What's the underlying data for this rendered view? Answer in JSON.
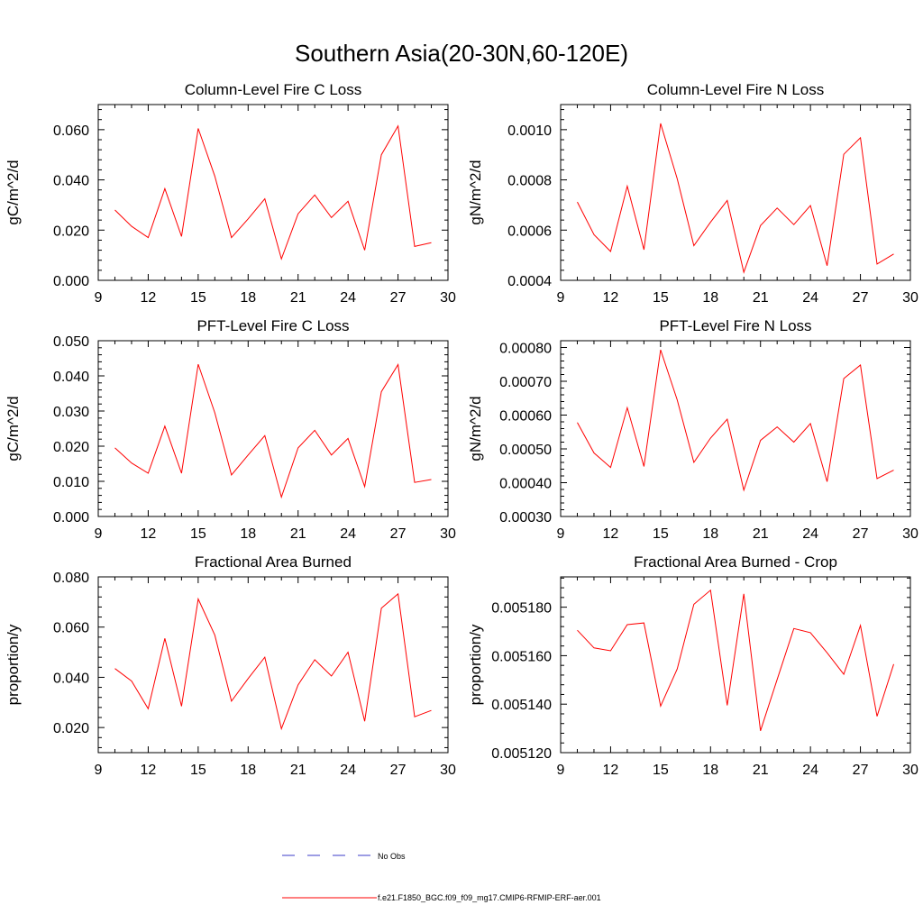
{
  "figure_title": "Southern Asia(20-30N,60-120E)",
  "colors": {
    "model": "#ff0000",
    "obs": "#3b3bc9",
    "axis": "#000000"
  },
  "legend": {
    "obs_label": "No Obs",
    "model_label": "f.e21.F1850_BGC.f09_f09_mg17.CMIP6-RFMIP-ERF-aer.001"
  },
  "chart_data": [
    {
      "type": "line",
      "title": "Column-Level Fire C Loss",
      "ylabel": "gC/m^2/d",
      "xlim": [
        9,
        30
      ],
      "xticks": [
        9,
        12,
        15,
        18,
        21,
        24,
        27,
        30
      ],
      "ylim": [
        0.0,
        0.07
      ],
      "yticks": [
        "0.000",
        "0.020",
        "0.040",
        "0.060"
      ],
      "x": [
        10,
        11,
        12,
        13,
        14,
        15,
        16,
        17,
        18,
        19,
        20,
        21,
        22,
        23,
        24,
        25,
        26,
        27,
        28,
        29
      ],
      "series": [
        {
          "values": [
            0.028,
            0.0215,
            0.017,
            0.0365,
            0.0175,
            0.0605,
            0.0415,
            0.017,
            0.0245,
            0.0325,
            0.0085,
            0.0265,
            0.034,
            0.025,
            0.0315,
            0.012,
            0.05,
            0.0615,
            0.0135,
            0.015
          ]
        }
      ]
    },
    {
      "type": "line",
      "title": "Column-Level Fire N Loss",
      "ylabel": "gN/m^2/d",
      "xlim": [
        9,
        30
      ],
      "xticks": [
        9,
        12,
        15,
        18,
        21,
        24,
        27,
        30
      ],
      "ylim": [
        0.0004,
        0.0011
      ],
      "yticks": [
        "0.0004",
        "0.0006",
        "0.0008",
        "0.0010"
      ],
      "x": [
        10,
        11,
        12,
        13,
        14,
        15,
        16,
        17,
        18,
        19,
        20,
        21,
        22,
        23,
        24,
        25,
        26,
        27,
        28,
        29
      ],
      "series": [
        {
          "values": [
            0.000712,
            0.000582,
            0.000515,
            0.000775,
            0.000522,
            0.001025,
            0.000805,
            0.000538,
            0.000632,
            0.000718,
            0.000432,
            0.000618,
            0.000688,
            0.000622,
            0.000698,
            0.000458,
            0.000902,
            0.000968,
            0.000465,
            0.000505
          ]
        }
      ]
    },
    {
      "type": "line",
      "title": "PFT-Level Fire C Loss",
      "ylabel": "gC/m^2/d",
      "xlim": [
        9,
        30
      ],
      "xticks": [
        9,
        12,
        15,
        18,
        21,
        24,
        27,
        30
      ],
      "ylim": [
        0.0,
        0.05
      ],
      "yticks": [
        "0.000",
        "0.010",
        "0.020",
        "0.030",
        "0.040",
        "0.050"
      ],
      "x": [
        10,
        11,
        12,
        13,
        14,
        15,
        16,
        17,
        18,
        19,
        20,
        21,
        22,
        23,
        24,
        25,
        26,
        27,
        28,
        29
      ],
      "series": [
        {
          "values": [
            0.0195,
            0.0152,
            0.0123,
            0.0257,
            0.0123,
            0.0433,
            0.0295,
            0.0118,
            0.0175,
            0.023,
            0.0055,
            0.0195,
            0.0245,
            0.0175,
            0.0222,
            0.0085,
            0.0355,
            0.0432,
            0.0097,
            0.0105
          ]
        }
      ]
    },
    {
      "type": "line",
      "title": "PFT-Level Fire N Loss",
      "ylabel": "gN/m^2/d",
      "xlim": [
        9,
        30
      ],
      "xticks": [
        9,
        12,
        15,
        18,
        21,
        24,
        27,
        30
      ],
      "ylim": [
        0.0003,
        0.00082
      ],
      "yticks": [
        "0.00030",
        "0.00040",
        "0.00050",
        "0.00060",
        "0.00070",
        "0.00080"
      ],
      "x": [
        10,
        11,
        12,
        13,
        14,
        15,
        16,
        17,
        18,
        19,
        20,
        21,
        22,
        23,
        24,
        25,
        26,
        27,
        28,
        29
      ],
      "series": [
        {
          "values": [
            0.000578,
            0.000488,
            0.000445,
            0.000622,
            0.000448,
            0.000793,
            0.000645,
            0.00046,
            0.000532,
            0.000588,
            0.000378,
            0.000525,
            0.000565,
            0.00052,
            0.000575,
            0.000403,
            0.000708,
            0.000748,
            0.000412,
            0.000437
          ]
        }
      ]
    },
    {
      "type": "line",
      "title": "Fractional Area Burned",
      "ylabel": "proportion/y",
      "xlim": [
        9,
        30
      ],
      "xticks": [
        9,
        12,
        15,
        18,
        21,
        24,
        27,
        30
      ],
      "ylim": [
        0.01,
        0.08
      ],
      "yticks": [
        "0.020",
        "0.040",
        "0.060",
        "0.080"
      ],
      "x": [
        10,
        11,
        12,
        13,
        14,
        15,
        16,
        17,
        18,
        19,
        20,
        21,
        22,
        23,
        24,
        25,
        26,
        27,
        28,
        29
      ],
      "series": [
        {
          "values": [
            0.0435,
            0.0385,
            0.0275,
            0.0555,
            0.0285,
            0.0712,
            0.0568,
            0.0305,
            0.0395,
            0.048,
            0.0195,
            0.037,
            0.047,
            0.0405,
            0.05,
            0.0225,
            0.0675,
            0.0732,
            0.0243,
            0.0268
          ]
        }
      ]
    },
    {
      "type": "line",
      "title": "Fractional Area Burned - Crop",
      "ylabel": "proportion/y",
      "xlim": [
        9,
        30
      ],
      "xticks": [
        9,
        12,
        15,
        18,
        21,
        24,
        27,
        30
      ],
      "ylim": [
        0.00512,
        0.0051925
      ],
      "yticks": [
        "0.005120",
        "0.005140",
        "0.005160",
        "0.005180"
      ],
      "x": [
        10,
        11,
        12,
        13,
        14,
        15,
        16,
        17,
        18,
        19,
        20,
        21,
        22,
        23,
        24,
        25,
        26,
        27,
        28,
        29
      ],
      "series": [
        {
          "values": [
            0.0051705,
            0.0051632,
            0.005162,
            0.0051728,
            0.0051735,
            0.0051392,
            0.0051545,
            0.0051812,
            0.005187,
            0.0051395,
            0.0051855,
            0.005129,
            0.0051502,
            0.0051712,
            0.0051695,
            0.0051612,
            0.0051523,
            0.0051725,
            0.005135,
            0.0051565
          ]
        }
      ]
    }
  ]
}
